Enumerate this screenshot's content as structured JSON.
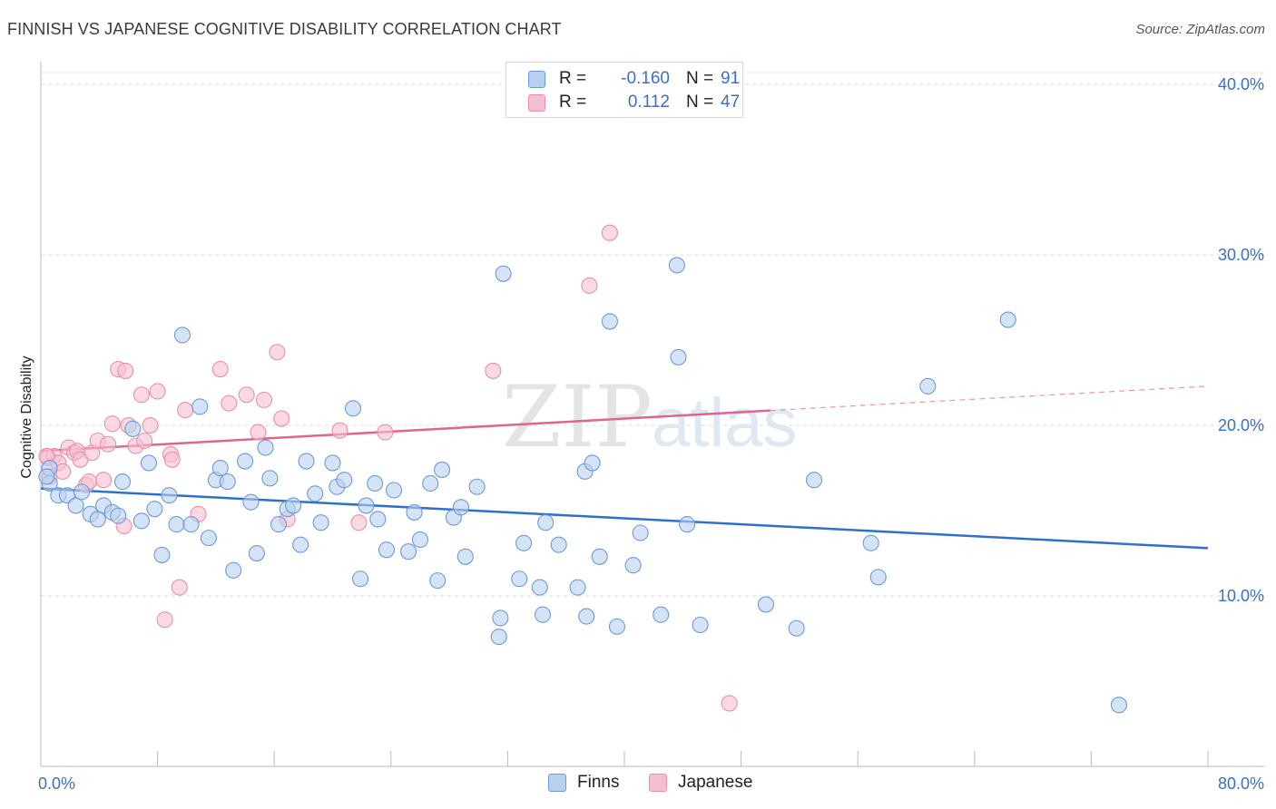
{
  "title": "FINNISH VS JAPANESE COGNITIVE DISABILITY CORRELATION CHART",
  "source": "Source: ZipAtlas.com",
  "watermark": {
    "zip": "ZIP",
    "atlas": "atlas"
  },
  "colors": {
    "finns_fill": "#b8d0f0",
    "finns_stroke": "#6e9ad8",
    "finns_line": "#2f6fd0",
    "japanese_fill": "#f6bfd0",
    "japanese_stroke": "#e890ac",
    "japanese_line": "#e0648e",
    "tick_text": "#3a70c8",
    "grid": "#dedede"
  },
  "legend_top": {
    "rows": [
      {
        "series": "finns",
        "r_label": "R =",
        "r_value": "-0.160",
        "n_label": "N =",
        "n_value": "91"
      },
      {
        "series": "japanese",
        "r_label": "R =",
        "r_value": "0.112",
        "n_label": "N =",
        "n_value": "47"
      }
    ]
  },
  "legend_bottom": {
    "finns": "Finns",
    "japanese": "Japanese"
  },
  "chart_data": {
    "type": "scatter",
    "title": "FINNISH VS JAPANESE COGNITIVE DISABILITY CORRELATION CHART",
    "xlabel": "",
    "ylabel": "Cognitive Disability",
    "xlim": [
      0,
      80
    ],
    "ylim": [
      0,
      40.7
    ],
    "x_tick_labels": [
      "0.0%",
      "80.0%"
    ],
    "y_tick_labels": [
      "10.0%",
      "20.0%",
      "30.0%",
      "40.0%"
    ],
    "y_ticks": [
      10,
      20,
      30,
      40
    ],
    "x_minor_ticks": [
      8,
      16,
      24,
      32,
      40,
      48,
      56,
      64,
      72,
      80
    ],
    "grid": true,
    "legend_placement": "top-center",
    "series": [
      {
        "name": "Finns",
        "r": -0.16,
        "n": 91,
        "trend": {
          "x0": 0,
          "y0": 16.3,
          "x1": 80,
          "y1": 12.8,
          "dash_from": null
        },
        "points": [
          [
            0.6,
            17.5
          ],
          [
            0.6,
            16.6
          ],
          [
            1.2,
            15.9
          ],
          [
            1.8,
            15.9
          ],
          [
            2.4,
            15.3
          ],
          [
            2.8,
            16.1
          ],
          [
            3.4,
            14.8
          ],
          [
            3.9,
            14.5
          ],
          [
            4.3,
            15.3
          ],
          [
            4.9,
            14.9
          ],
          [
            5.3,
            14.7
          ],
          [
            5.6,
            16.7
          ],
          [
            6.3,
            19.8
          ],
          [
            6.9,
            14.4
          ],
          [
            7.4,
            17.8
          ],
          [
            7.8,
            15.1
          ],
          [
            8.3,
            12.4
          ],
          [
            8.8,
            15.9
          ],
          [
            9.3,
            14.2
          ],
          [
            9.7,
            25.3
          ],
          [
            10.3,
            14.2
          ],
          [
            10.9,
            21.1
          ],
          [
            11.5,
            13.4
          ],
          [
            12.0,
            16.8
          ],
          [
            12.3,
            17.5
          ],
          [
            12.8,
            16.7
          ],
          [
            13.2,
            11.5
          ],
          [
            14.0,
            17.9
          ],
          [
            14.4,
            15.5
          ],
          [
            14.8,
            12.5
          ],
          [
            15.4,
            18.7
          ],
          [
            15.7,
            16.9
          ],
          [
            16.3,
            14.2
          ],
          [
            16.9,
            15.1
          ],
          [
            17.3,
            15.3
          ],
          [
            17.8,
            13.0
          ],
          [
            18.2,
            17.9
          ],
          [
            18.8,
            16.0
          ],
          [
            19.2,
            14.3
          ],
          [
            20.0,
            17.8
          ],
          [
            20.3,
            16.4
          ],
          [
            20.8,
            16.8
          ],
          [
            21.4,
            21.0
          ],
          [
            21.9,
            11.0
          ],
          [
            22.3,
            15.3
          ],
          [
            22.9,
            16.6
          ],
          [
            23.1,
            14.5
          ],
          [
            23.7,
            12.7
          ],
          [
            24.2,
            16.2
          ],
          [
            25.2,
            12.6
          ],
          [
            25.6,
            14.9
          ],
          [
            26.0,
            13.3
          ],
          [
            26.7,
            16.6
          ],
          [
            27.2,
            10.9
          ],
          [
            27.5,
            17.4
          ],
          [
            28.3,
            14.6
          ],
          [
            28.8,
            15.2
          ],
          [
            29.1,
            12.3
          ],
          [
            29.9,
            16.4
          ],
          [
            31.4,
            7.6
          ],
          [
            31.5,
            8.7
          ],
          [
            31.7,
            28.9
          ],
          [
            32.8,
            11.0
          ],
          [
            33.1,
            13.1
          ],
          [
            34.2,
            10.5
          ],
          [
            34.4,
            8.9
          ],
          [
            34.6,
            14.3
          ],
          [
            35.5,
            13.0
          ],
          [
            36.8,
            10.5
          ],
          [
            37.4,
            8.8
          ],
          [
            37.3,
            17.3
          ],
          [
            37.8,
            17.8
          ],
          [
            38.3,
            12.3
          ],
          [
            39.0,
            26.1
          ],
          [
            39.5,
            8.2
          ],
          [
            40.6,
            11.8
          ],
          [
            41.1,
            13.7
          ],
          [
            42.5,
            8.9
          ],
          [
            43.7,
            24.0
          ],
          [
            43.6,
            29.4
          ],
          [
            44.3,
            14.2
          ],
          [
            45.2,
            8.3
          ],
          [
            49.7,
            9.5
          ],
          [
            51.8,
            8.1
          ],
          [
            53.0,
            16.8
          ],
          [
            56.9,
            13.1
          ],
          [
            57.4,
            11.1
          ],
          [
            60.8,
            22.3
          ],
          [
            66.3,
            26.2
          ],
          [
            73.9,
            3.6
          ],
          [
            0.4,
            17.0
          ]
        ]
      },
      {
        "name": "Japanese",
        "r": 0.112,
        "n": 47,
        "trend": {
          "x0": 0,
          "y0": 18.5,
          "x1": 80,
          "y1": 22.3,
          "dash_from": 50
        },
        "points": [
          [
            0.5,
            18.1
          ],
          [
            0.6,
            17.0
          ],
          [
            0.9,
            18.2
          ],
          [
            1.2,
            17.8
          ],
          [
            1.5,
            17.3
          ],
          [
            1.9,
            18.7
          ],
          [
            2.3,
            18.4
          ],
          [
            2.5,
            18.5
          ],
          [
            2.7,
            18.0
          ],
          [
            3.1,
            16.5
          ],
          [
            3.3,
            16.7
          ],
          [
            3.5,
            18.4
          ],
          [
            3.9,
            19.1
          ],
          [
            4.3,
            16.8
          ],
          [
            4.6,
            18.9
          ],
          [
            4.9,
            20.1
          ],
          [
            5.3,
            23.3
          ],
          [
            5.7,
            14.1
          ],
          [
            5.8,
            23.2
          ],
          [
            6.0,
            20.0
          ],
          [
            6.5,
            18.8
          ],
          [
            6.9,
            21.8
          ],
          [
            7.1,
            19.1
          ],
          [
            7.5,
            20.0
          ],
          [
            8.0,
            22.0
          ],
          [
            8.5,
            8.6
          ],
          [
            8.9,
            18.3
          ],
          [
            9.0,
            18.0
          ],
          [
            9.5,
            10.5
          ],
          [
            9.9,
            20.9
          ],
          [
            10.8,
            14.8
          ],
          [
            12.3,
            23.3
          ],
          [
            12.9,
            21.3
          ],
          [
            14.1,
            21.8
          ],
          [
            14.9,
            19.6
          ],
          [
            15.3,
            21.5
          ],
          [
            16.2,
            24.3
          ],
          [
            16.5,
            20.4
          ],
          [
            16.9,
            14.5
          ],
          [
            20.5,
            19.7
          ],
          [
            21.8,
            14.3
          ],
          [
            23.6,
            19.6
          ],
          [
            31.0,
            23.2
          ],
          [
            37.6,
            28.2
          ],
          [
            39.0,
            31.3
          ],
          [
            47.2,
            3.7
          ],
          [
            0.4,
            18.2
          ]
        ]
      }
    ]
  }
}
